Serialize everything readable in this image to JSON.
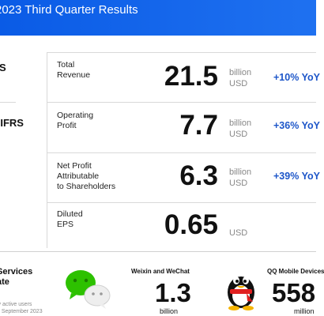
{
  "banner": {
    "title": "2023 Third Quarter Results"
  },
  "left_labels": [
    "S",
    "-IFRS"
  ],
  "metrics": [
    {
      "label": [
        "Total",
        "Revenue"
      ],
      "value": "21.5",
      "unit": [
        "billion",
        "USD"
      ],
      "change": "+10% YoY"
    },
    {
      "label": [
        "Operating",
        "Profit"
      ],
      "value": "7.7",
      "unit": [
        "billion",
        "USD"
      ],
      "change": "+36% YoY"
    },
    {
      "label": [
        "Net Profit",
        "Attributable",
        "to Shareholders"
      ],
      "value": "6.3",
      "unit": [
        "billion",
        "USD"
      ],
      "change": "+39% YoY"
    },
    {
      "label": [
        "Diluted",
        "EPS"
      ],
      "value": "0.65",
      "unit": [
        "USD"
      ],
      "change": ""
    }
  ],
  "services": {
    "title": [
      "Services",
      "ate"
    ],
    "note": [
      "ly active users",
      "0 September 2023"
    ]
  },
  "apps": [
    {
      "name": "Weixin and WeChat",
      "value": "1.3",
      "unit": "billion"
    },
    {
      "name": "QQ Mobile Devices",
      "value": "558",
      "unit": "million"
    }
  ],
  "colors": {
    "banner": "#1463ea",
    "change": "#1d56c9",
    "wechat_green": "#2dc100"
  }
}
